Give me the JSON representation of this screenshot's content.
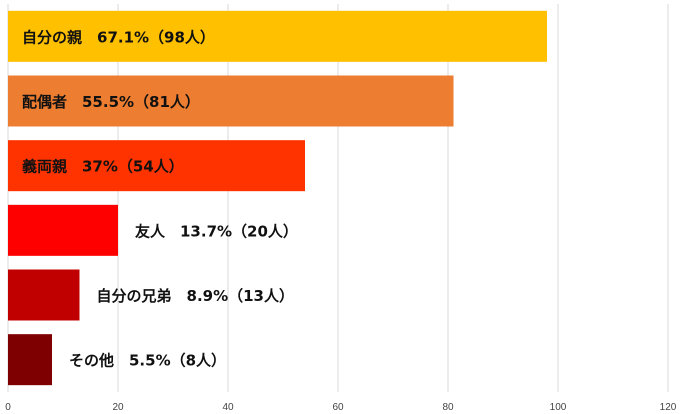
{
  "chart_data": {
    "type": "bar",
    "orientation": "horizontal",
    "title": "",
    "xlabel": "",
    "ylabel": "",
    "xlim": [
      0,
      120
    ],
    "xticks": [
      0,
      20,
      40,
      60,
      80,
      100,
      120
    ],
    "grid": true,
    "categories": [
      "自分の親",
      "配偶者",
      "義両親",
      "友人",
      "自分の兄弟",
      "その他"
    ],
    "values": [
      98,
      81,
      54,
      20,
      13,
      8
    ],
    "percentages": [
      "67.1%",
      "55.5%",
      "37%",
      "13.7%",
      "8.9%",
      "5.5%"
    ],
    "data_labels": [
      "自分の親　67.1%（98人）",
      "配偶者　55.5%（81人）",
      "義両親　37%（54人）",
      "友人　13.7%（20人）",
      "自分の兄弟　8.9%（13人）",
      "その他　5.5%（8人）"
    ],
    "colors": [
      "#FFC000",
      "#ED7D31",
      "#FF3300",
      "#FF0000",
      "#C00000",
      "#7F0000"
    ]
  }
}
